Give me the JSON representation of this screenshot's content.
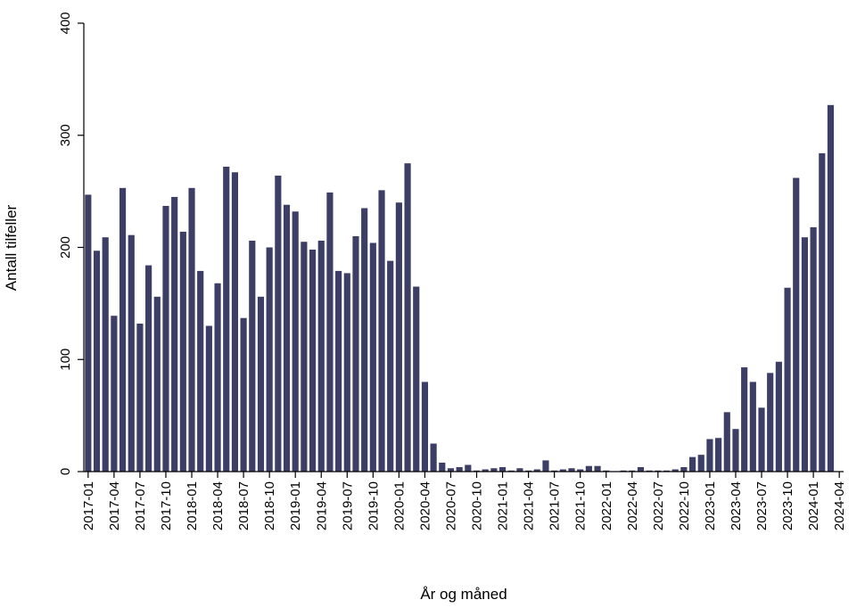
{
  "chart_data": {
    "type": "bar",
    "xlabel": "År og måned",
    "ylabel": "Antall tilfeller",
    "ylim": [
      0,
      400
    ],
    "yticks": [
      0,
      100,
      200,
      300,
      400
    ],
    "xtick_labels": [
      "2017-01",
      "2017-04",
      "2017-07",
      "2017-10",
      "2018-01",
      "2018-04",
      "2018-07",
      "2018-10",
      "2019-01",
      "2019-04",
      "2019-07",
      "2019-10",
      "2020-01",
      "2020-04",
      "2020-07",
      "2020-10",
      "2021-01",
      "2021-04",
      "2021-07",
      "2021-10",
      "2022-01",
      "2022-04",
      "2022-07",
      "2022-10",
      "2023-01",
      "2023-04",
      "2023-07",
      "2023-10",
      "2024-01",
      "2024-04"
    ],
    "bar_color": "#3c3e65",
    "grid": false,
    "categories": [
      "2017-01",
      "2017-02",
      "2017-03",
      "2017-04",
      "2017-05",
      "2017-06",
      "2017-07",
      "2017-08",
      "2017-09",
      "2017-10",
      "2017-11",
      "2017-12",
      "2018-01",
      "2018-02",
      "2018-03",
      "2018-04",
      "2018-05",
      "2018-06",
      "2018-07",
      "2018-08",
      "2018-09",
      "2018-10",
      "2018-11",
      "2018-12",
      "2019-01",
      "2019-02",
      "2019-03",
      "2019-04",
      "2019-05",
      "2019-06",
      "2019-07",
      "2019-08",
      "2019-09",
      "2019-10",
      "2019-11",
      "2019-12",
      "2020-01",
      "2020-02",
      "2020-03",
      "2020-04",
      "2020-05",
      "2020-06",
      "2020-07",
      "2020-08",
      "2020-09",
      "2020-10",
      "2020-11",
      "2020-12",
      "2021-01",
      "2021-02",
      "2021-03",
      "2021-04",
      "2021-05",
      "2021-06",
      "2021-07",
      "2021-08",
      "2021-09",
      "2021-10",
      "2021-11",
      "2021-12",
      "2022-01",
      "2022-02",
      "2022-03",
      "2022-04",
      "2022-05",
      "2022-06",
      "2022-07",
      "2022-08",
      "2022-09",
      "2022-10",
      "2022-11",
      "2022-12",
      "2023-01",
      "2023-02",
      "2023-03",
      "2023-04",
      "2023-05",
      "2023-06",
      "2023-07",
      "2023-08",
      "2023-09",
      "2023-10",
      "2023-11",
      "2023-12",
      "2024-01",
      "2024-02",
      "2024-03",
      "2024-04"
    ],
    "values": [
      247,
      197,
      209,
      139,
      253,
      211,
      132,
      184,
      156,
      237,
      245,
      214,
      253,
      179,
      130,
      168,
      272,
      267,
      137,
      206,
      156,
      200,
      264,
      238,
      232,
      205,
      198,
      206,
      249,
      179,
      177,
      210,
      235,
      204,
      251,
      188,
      240,
      275,
      165,
      80,
      25,
      8,
      3,
      4,
      6,
      1,
      2,
      3,
      4,
      1,
      3,
      1,
      2,
      10,
      1,
      2,
      3,
      2,
      5,
      5,
      1,
      0,
      1,
      1,
      4,
      1,
      1,
      1,
      2,
      4,
      13,
      15,
      29,
      30,
      53,
      38,
      93,
      80,
      57,
      88,
      98,
      164,
      262,
      209,
      218,
      284,
      327,
      null
    ]
  }
}
